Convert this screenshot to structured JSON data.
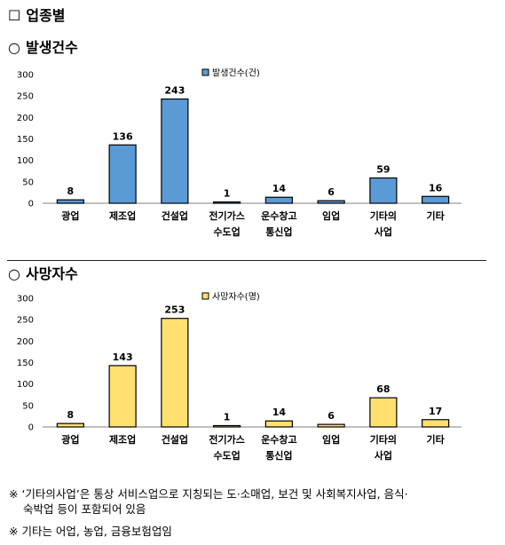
{
  "heading_main": {
    "mark": "☐",
    "text": "업종별"
  },
  "heading_sub1": {
    "mark": "○",
    "text": "발생건수"
  },
  "heading_sub2": {
    "mark": "○",
    "text": "사망자수"
  },
  "chart_data": [
    {
      "type": "bar",
      "legend": "발생건수(건)",
      "legend_position": "top-right",
      "color": "#5b9bd5",
      "categories": [
        [
          "광업"
        ],
        [
          "제조업"
        ],
        [
          "건설업"
        ],
        [
          "전기가스",
          "수도업"
        ],
        [
          "운수창고",
          "통신업"
        ],
        [
          "임업"
        ],
        [
          "기타의",
          "사업"
        ],
        [
          "기타"
        ]
      ],
      "values": [
        8,
        136,
        243,
        1,
        14,
        6,
        59,
        16
      ],
      "yticks": [
        0,
        50,
        100,
        150,
        200,
        250,
        300
      ],
      "ylim": [
        0,
        300
      ],
      "grid": false
    },
    {
      "type": "bar",
      "legend": "사망자수(명)",
      "legend_position": "top-right",
      "color": "#ffe070",
      "categories": [
        [
          "광업"
        ],
        [
          "제조업"
        ],
        [
          "건설업"
        ],
        [
          "전기가스",
          "수도업"
        ],
        [
          "운수창고",
          "통신업"
        ],
        [
          "임업"
        ],
        [
          "기타의",
          "사업"
        ],
        [
          "기타"
        ]
      ],
      "values": [
        8,
        143,
        253,
        1,
        14,
        6,
        68,
        17
      ],
      "yticks": [
        0,
        50,
        100,
        150,
        200,
        250,
        300
      ],
      "ylim": [
        0,
        300
      ],
      "grid": false
    }
  ],
  "notes": {
    "note1": "※ ‘기타의사업’은 통상 서비스업으로 지칭되는 도·소매업, 보건 및 사회복지사업, 음식·",
    "note1b": "숙박업 등이 포함되어 있음",
    "note2": "※ 기타는 어업, 농업, 금융보험업임"
  }
}
